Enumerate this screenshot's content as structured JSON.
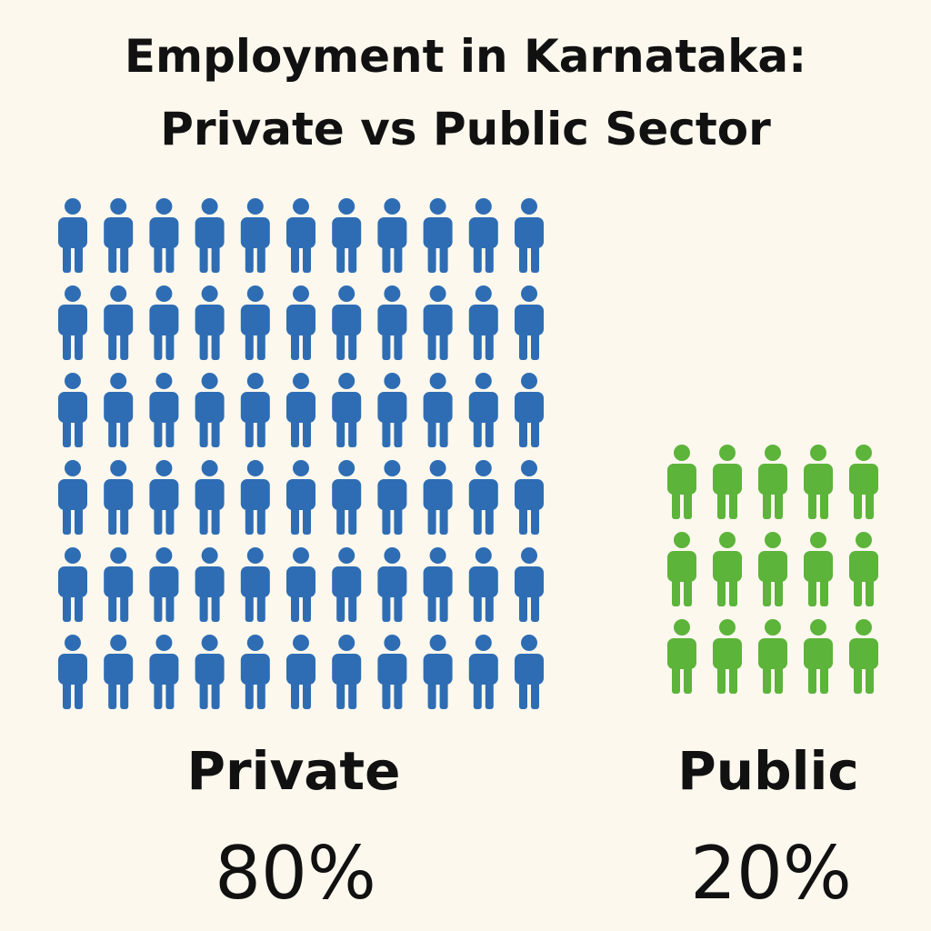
{
  "chart_data": {
    "type": "pictogram",
    "title": "Employment in Karnataka: Private vs Public Sector",
    "categories": [
      "Private",
      "Public"
    ],
    "values": [
      80,
      20
    ],
    "value_labels": [
      "80%",
      "20%"
    ],
    "colors": [
      "#2e6db4",
      "#5cb43a"
    ]
  }
}
